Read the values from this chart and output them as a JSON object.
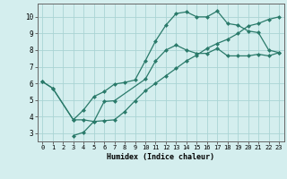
{
  "xlabel": "Humidex (Indice chaleur)",
  "bg_color": "#d4eeee",
  "grid_color": "#aad4d4",
  "line_color": "#2a7a6a",
  "xlim": [
    -0.5,
    23.5
  ],
  "ylim": [
    2.5,
    10.8
  ],
  "xticks": [
    0,
    1,
    2,
    3,
    4,
    5,
    6,
    7,
    8,
    9,
    10,
    11,
    12,
    13,
    14,
    15,
    16,
    17,
    18,
    19,
    20,
    21,
    22,
    23
  ],
  "yticks": [
    3,
    4,
    5,
    6,
    7,
    8,
    9,
    10
  ],
  "line1_x": [
    0,
    1,
    3,
    4,
    5,
    6,
    7,
    8,
    9,
    10,
    11,
    12,
    13,
    14,
    15,
    16,
    17,
    18,
    19,
    20,
    21,
    22,
    23
  ],
  "line1_y": [
    6.1,
    5.7,
    3.8,
    4.4,
    5.2,
    5.5,
    5.95,
    6.05,
    6.2,
    7.35,
    8.55,
    9.5,
    10.2,
    10.3,
    10.0,
    10.0,
    10.35,
    9.6,
    9.5,
    9.15,
    9.05,
    8.0,
    7.85
  ],
  "line2_x": [
    0,
    1,
    3,
    4,
    5,
    6,
    7,
    8,
    9,
    10,
    11,
    12,
    13,
    14,
    15,
    16,
    17,
    18,
    19,
    20,
    21,
    22,
    23
  ],
  "line2_y": [
    6.1,
    5.7,
    3.8,
    3.8,
    3.7,
    3.75,
    3.8,
    4.3,
    4.95,
    5.55,
    6.0,
    6.45,
    6.9,
    7.35,
    7.7,
    8.1,
    8.4,
    8.65,
    9.0,
    9.45,
    9.6,
    9.85,
    10.0
  ],
  "line3_x": [
    3,
    4,
    5,
    6,
    7,
    10,
    11,
    12,
    13,
    14,
    15,
    16,
    17,
    18,
    19,
    20,
    21,
    22,
    23
  ],
  "line3_y": [
    2.85,
    3.05,
    3.7,
    4.9,
    4.95,
    6.25,
    7.35,
    8.0,
    8.3,
    8.0,
    7.8,
    7.8,
    8.1,
    7.65,
    7.65,
    7.65,
    7.75,
    7.65,
    7.85
  ],
  "marker_size": 2.5,
  "lw": 0.9
}
